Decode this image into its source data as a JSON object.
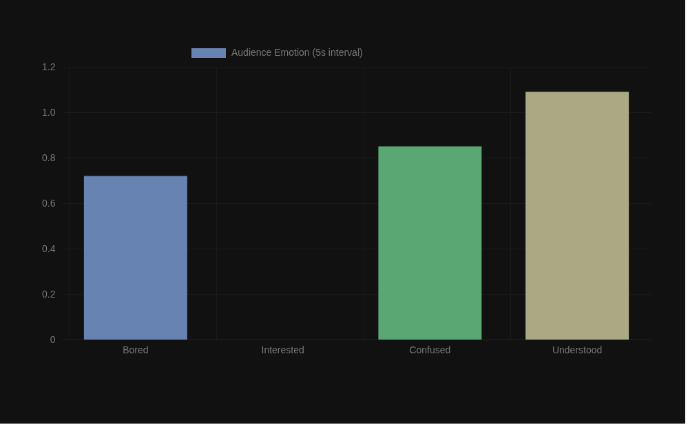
{
  "chart_data": {
    "type": "bar",
    "categories": [
      "Bored",
      "Interested",
      "Confused",
      "Understood"
    ],
    "series": [
      {
        "name": "Audience Emotion (5s interval)",
        "color": "#6783b2",
        "colors": [
          "#6783b2",
          null,
          "#5ba774",
          "#aba983"
        ],
        "values": [
          0.72,
          0,
          0.85,
          1.09
        ]
      }
    ],
    "ylim": [
      0,
      1.2
    ],
    "yticks": [
      0,
      0.2,
      0.4,
      0.6,
      0.8,
      {
        "value": 1.0,
        "label": "1.0"
      },
      1.2
    ],
    "grid": true,
    "legend": "top"
  }
}
